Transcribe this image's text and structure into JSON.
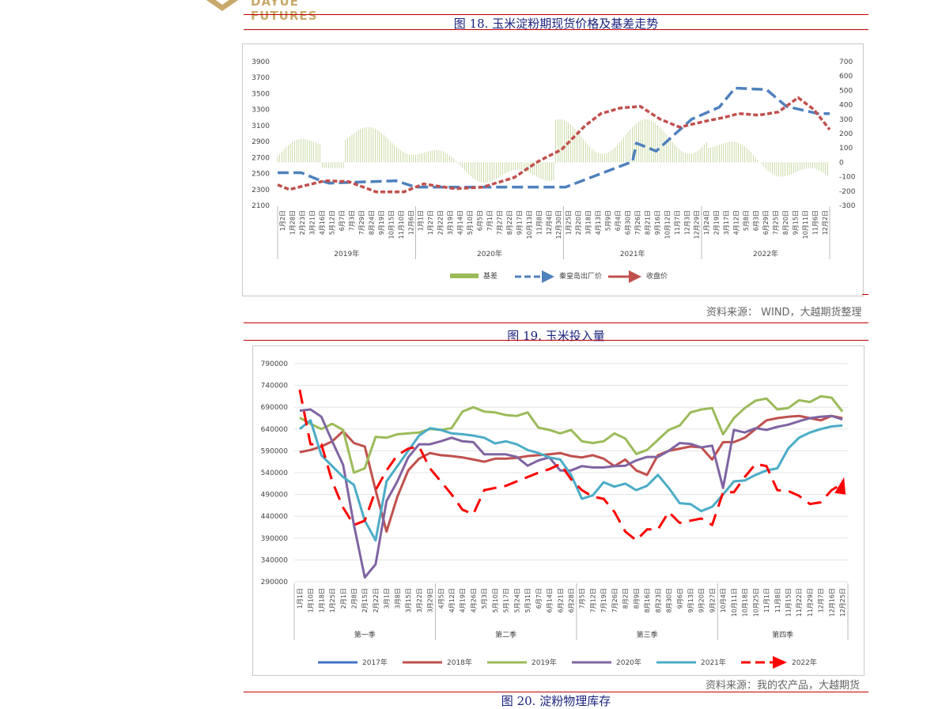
{
  "header": {
    "logo_text": "DAYUE FUTURES",
    "brand_color": "#c9a96b"
  },
  "figure18": {
    "title": "图 18. 玉米淀粉期现货价格及基差走势",
    "source": "资料来源： WIND，大越期货整理",
    "chart_data": {
      "type": "line",
      "left_axis": {
        "ticks": [
          2100,
          2300,
          2500,
          2700,
          2900,
          3100,
          3300,
          3500,
          3700,
          3900
        ],
        "ylim": [
          2100,
          3900
        ]
      },
      "right_axis": {
        "ticks": [
          -300,
          -200,
          -100,
          0,
          100,
          200,
          300,
          400,
          500,
          600,
          700
        ],
        "ylim": [
          -300,
          700
        ]
      },
      "years": [
        "2019年",
        "2020年",
        "2021年",
        "2022年"
      ],
      "x_ticks": {
        "2019年": [
          "1月2日",
          "1月28日",
          "2月23日",
          "3月21日",
          "4月16日",
          "5月12日",
          "6月7日",
          "7月3日",
          "7月29日",
          "8月24日",
          "9月19日",
          "10月15日",
          "11月10日",
          "12月6日"
        ],
        "2020年": [
          "1月1日",
          "1月27日",
          "2月22日",
          "3月19日",
          "4月14日",
          "5月10日",
          "6月5日",
          "7月1日",
          "7月27日",
          "8月22日",
          "9月17日",
          "10月13日",
          "11月8日",
          "12月4日",
          "12月30日"
        ],
        "2021年": [
          "1月25日",
          "2月20日",
          "3月18日",
          "4月13日",
          "5月9日",
          "6月4日",
          "6月30日",
          "7月26日",
          "8月21日",
          "9月16日",
          "10月12日",
          "11月7日",
          "12月3日",
          "12月29日"
        ],
        "2022年": [
          "1月24日",
          "2月19日",
          "3月17日",
          "4月12日",
          "5月8日",
          "6月3日",
          "6月29日",
          "7月25日",
          "8月20日",
          "9月15日",
          "10月11日",
          "11月6日",
          "12月2日"
        ]
      },
      "series": [
        {
          "name": "基差",
          "color": "#9bbb59",
          "axis": "right"
        },
        {
          "name": "秦皇岛出厂价",
          "color": "#4f81bd",
          "axis": "left",
          "x": [
            0,
            0.6,
            1.1,
            1.3,
            3.0,
            3.5,
            6.0,
            7.3,
            9.0,
            9.1,
            9.6,
            10.0,
            10.5,
            11.2,
            11.6,
            12.4,
            12.9,
            13.7,
            14.0
          ],
          "y": [
            2510,
            2510,
            2410,
            2380,
            2410,
            2330,
            2330,
            2330,
            2650,
            2880,
            2780,
            2960,
            3180,
            3330,
            3570,
            3550,
            3340,
            3250,
            3250
          ]
        },
        {
          "name": "收盘价",
          "color": "#c0504d",
          "axis": "left",
          "x": [
            0,
            0.3,
            0.7,
            1.2,
            1.8,
            2.5,
            3.2,
            3.7,
            4.5,
            5.2,
            6.0,
            6.6,
            7.2,
            7.8,
            8.2,
            8.7,
            9.2,
            9.7,
            10.2,
            10.8,
            11.3,
            11.7,
            12.2,
            12.7,
            13.2,
            13.6,
            14.0
          ],
          "y": [
            2360,
            2300,
            2350,
            2410,
            2400,
            2270,
            2270,
            2370,
            2310,
            2330,
            2450,
            2650,
            2800,
            3100,
            3250,
            3320,
            3340,
            3180,
            3080,
            3150,
            3200,
            3250,
            3230,
            3270,
            3450,
            3300,
            3050
          ]
        }
      ],
      "legend_position": "bottom"
    }
  },
  "figure19": {
    "title": "图 19. 玉米投入量",
    "source": "资料来源：我的农产品，大越期货",
    "chart_data": {
      "type": "line",
      "ylim": [
        290000,
        790000
      ],
      "y_ticks": [
        290000,
        340000,
        390000,
        440000,
        490000,
        540000,
        590000,
        640000,
        690000,
        740000,
        790000
      ],
      "quarters": [
        "第一季",
        "第二季",
        "第三季",
        "第四季"
      ],
      "x_ticks": [
        "1月1日",
        "1月10日",
        "1月18日",
        "1月25日",
        "2月1日",
        "2月8日",
        "2月15日",
        "2月22日",
        "3月1日",
        "3月8日",
        "3月15日",
        "3月22日",
        "3月29日",
        "4月5日",
        "4月12日",
        "4月19日",
        "4月26日",
        "5月3日",
        "5月10日",
        "5月17日",
        "5月24日",
        "5月31日",
        "6月7日",
        "6月14日",
        "6月21日",
        "6月28日",
        "7月5日",
        "7月12日",
        "7月19日",
        "7月26日",
        "8月2日",
        "8月9日",
        "8月16日",
        "8月23日",
        "8月30日",
        "9月6日",
        "9月13日",
        "9月20日",
        "9月27日",
        "10月4日",
        "10月11日",
        "10月18日",
        "10月25日",
        "11月1日",
        "11月8日",
        "11月15日",
        "11月22日",
        "11月29日",
        "12月7日",
        "12月16日",
        "12月25日"
      ],
      "series": [
        {
          "name": "2017年",
          "color": "#4472c4",
          "values": []
        },
        {
          "name": "2018年",
          "color": "#c0504d",
          "values": [
            587000,
            592000,
            600000,
            612000,
            635000,
            608000,
            600000,
            500000,
            405000,
            485000,
            545000,
            572000,
            585000,
            580000,
            578000,
            575000,
            570000,
            565000,
            572000,
            572000,
            574000,
            578000,
            580000,
            582000,
            585000,
            578000,
            575000,
            580000,
            572000,
            555000,
            570000,
            545000,
            535000,
            580000,
            590000,
            595000,
            600000,
            598000,
            570000,
            610000,
            610000,
            620000,
            640000,
            660000,
            665000,
            668000,
            670000,
            665000,
            660000,
            670000,
            665000
          ]
        },
        {
          "name": "2019年",
          "color": "#9bbb59",
          "values": [
            666000,
            652000,
            640000,
            652000,
            638000,
            540000,
            550000,
            622000,
            620000,
            628000,
            630000,
            632000,
            640000,
            638000,
            642000,
            680000,
            690000,
            680000,
            678000,
            672000,
            670000,
            678000,
            643000,
            638000,
            630000,
            638000,
            612000,
            608000,
            612000,
            630000,
            618000,
            583000,
            592000,
            615000,
            638000,
            648000,
            678000,
            685000,
            688000,
            628000,
            665000,
            688000,
            705000,
            710000,
            685000,
            688000,
            706000,
            702000,
            715000,
            712000,
            680000
          ]
        },
        {
          "name": "2020年",
          "color": "#8064a2",
          "values": [
            682000,
            685000,
            668000,
            612000,
            558000,
            420000,
            300000,
            330000,
            475000,
            520000,
            575000,
            605000,
            605000,
            612000,
            620000,
            612000,
            610000,
            582000,
            582000,
            582000,
            576000,
            556000,
            568000,
            575000,
            545000,
            545000,
            555000,
            552000,
            552000,
            555000,
            556000,
            568000,
            576000,
            576000,
            590000,
            608000,
            606000,
            598000,
            602000,
            505000,
            638000,
            632000,
            642000,
            638000,
            645000,
            650000,
            658000,
            665000,
            668000,
            670000,
            662000
          ]
        },
        {
          "name": "2021年",
          "color": "#4bacc6",
          "values": [
            640000,
            660000,
            580000,
            555000,
            530000,
            512000,
            430000,
            385000,
            520000,
            555000,
            590000,
            625000,
            642000,
            638000,
            630000,
            628000,
            625000,
            620000,
            607000,
            612000,
            605000,
            592000,
            585000,
            575000,
            570000,
            535000,
            480000,
            488000,
            518000,
            508000,
            515000,
            500000,
            510000,
            535000,
            505000,
            470000,
            468000,
            452000,
            462000,
            490000,
            520000,
            522000,
            535000,
            545000,
            550000,
            595000,
            620000,
            632000,
            640000,
            646000,
            648000
          ]
        },
        {
          "name": "2022年",
          "color": "#ff0000",
          "values": [
            730000,
            605000,
            605000,
            520000,
            460000,
            420000,
            430000,
            500000,
            545000,
            580000,
            595000,
            600000,
            550000,
            520000,
            490000,
            455000,
            445000,
            500000,
            505000,
            510000,
            520000,
            530000,
            540000,
            548000,
            560000,
            525000,
            500000,
            485000,
            480000,
            450000,
            405000,
            385000,
            410000,
            410000,
            450000,
            425000,
            430000,
            435000,
            420000,
            495000,
            495000,
            530000,
            560000,
            555000,
            500000,
            498000,
            487000,
            468000,
            472000,
            500000,
            515000
          ]
        }
      ],
      "legend_position": "bottom"
    }
  },
  "figure20": {
    "title": "图 20. 淀粉物理库存"
  }
}
